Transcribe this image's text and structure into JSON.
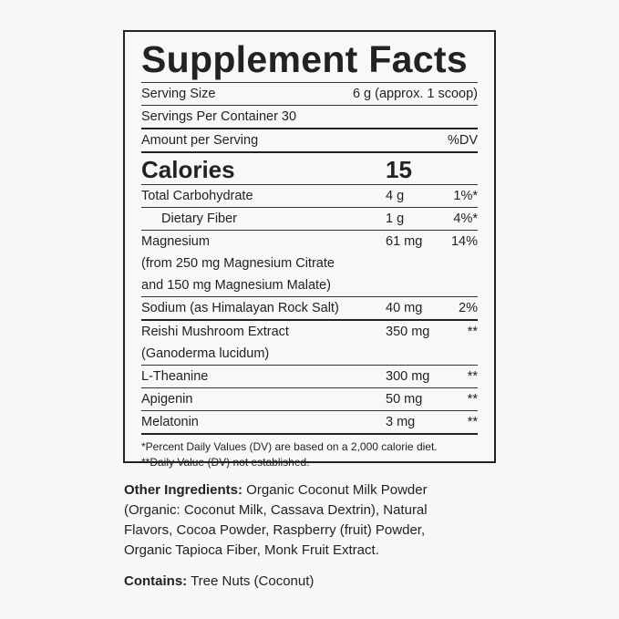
{
  "title": "Supplement Facts",
  "serving_size": {
    "label": "Serving Size",
    "value": "6 g (approx. 1 scoop)"
  },
  "servings_per_container": "Servings Per Container 30",
  "header": {
    "amount": "Amount per Serving",
    "dv": "%DV"
  },
  "calories": {
    "label": "Calories",
    "value": "15"
  },
  "nutrients": [
    {
      "lines": [
        "Total Carbohydrate"
      ],
      "amount": "4 g",
      "dv": "1%*"
    },
    {
      "lines": [
        "Dietary Fiber"
      ],
      "amount": "1 g",
      "dv": "4%*"
    },
    {
      "lines": [
        "Magnesium",
        "(from 250 mg Magnesium Citrate",
        "and 150 mg Magnesium Malate)"
      ],
      "amount": "61 mg",
      "dv": "14%"
    },
    {
      "lines": [
        "Sodium (as Himalayan Rock Salt)"
      ],
      "amount": "40 mg",
      "dv": "2%"
    },
    {
      "lines": [
        "Reishi Mushroom Extract",
        "(Ganoderma lucidum)"
      ],
      "amount": "350 mg",
      "dv": "**"
    },
    {
      "lines": [
        "L-Theanine"
      ],
      "amount": "300 mg",
      "dv": "**"
    },
    {
      "lines": [
        "Apigenin"
      ],
      "amount": "50 mg",
      "dv": "**"
    },
    {
      "lines": [
        "Melatonin"
      ],
      "amount": "3 mg",
      "dv": "**"
    }
  ],
  "footnotes": [
    "*Percent Daily Values (DV) are based on a 2,000 calorie diet.",
    "**Daily Value (DV) not established."
  ],
  "other_ingredients": {
    "label": "Other Ingredients:",
    "text": " Organic Coconut Milk Powder (Organic: Coconut Milk, Cassava Dextrin), Natural Flavors, Cocoa Powder, Raspberry (fruit) Powder, Organic Tapioca Fiber, Monk Fruit Extract."
  },
  "contains": {
    "label": "Contains:",
    "text": " Tree Nuts (Coconut)"
  }
}
